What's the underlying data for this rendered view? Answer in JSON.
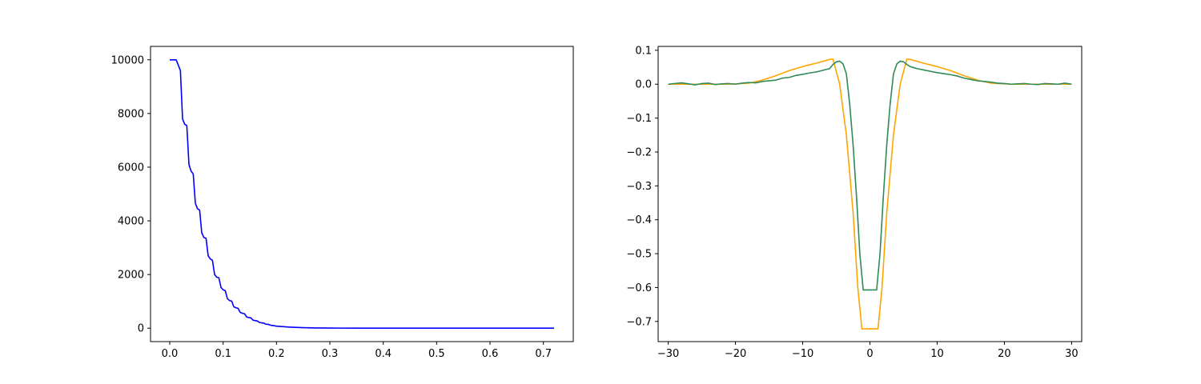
{
  "chart_data": [
    {
      "type": "line",
      "title": "",
      "xlabel": "",
      "ylabel": "",
      "xlim": [
        -0.036,
        0.756
      ],
      "ylim": [
        -500,
        10500
      ],
      "xticks": [
        0.0,
        0.1,
        0.2,
        0.3,
        0.4,
        0.5,
        0.6,
        0.7
      ],
      "xtick_labels": [
        "0.0",
        "0.1",
        "0.2",
        "0.3",
        "0.4",
        "0.5",
        "0.6",
        "0.7"
      ],
      "yticks": [
        0,
        2000,
        4000,
        6000,
        8000,
        10000
      ],
      "ytick_labels": [
        "0",
        "2000",
        "4000",
        "6000",
        "8000",
        "10000"
      ],
      "grid": false,
      "series": [
        {
          "color": "#0000ff",
          "x": [
            0.0,
            0.012,
            0.016,
            0.02,
            0.024,
            0.028,
            0.032,
            0.036,
            0.04,
            0.044,
            0.048,
            0.052,
            0.056,
            0.06,
            0.064,
            0.068,
            0.072,
            0.076,
            0.08,
            0.084,
            0.088,
            0.092,
            0.096,
            0.1,
            0.104,
            0.108,
            0.112,
            0.116,
            0.12,
            0.124,
            0.128,
            0.132,
            0.136,
            0.14,
            0.144,
            0.148,
            0.152,
            0.156,
            0.16,
            0.164,
            0.168,
            0.172,
            0.176,
            0.18,
            0.185,
            0.19,
            0.195,
            0.2,
            0.205,
            0.21,
            0.215,
            0.22,
            0.225,
            0.23,
            0.24,
            0.25,
            0.26,
            0.27,
            0.28,
            0.3,
            0.32,
            0.35,
            0.4,
            0.45,
            0.5,
            0.6,
            0.72
          ],
          "y": [
            10000,
            10000,
            9800,
            9600,
            7800,
            7600,
            7550,
            6100,
            5850,
            5750,
            4650,
            4450,
            4400,
            3550,
            3380,
            3350,
            2700,
            2580,
            2530,
            2000,
            1900,
            1880,
            1520,
            1430,
            1400,
            1100,
            1030,
            1010,
            800,
            760,
            740,
            590,
            555,
            540,
            420,
            395,
            385,
            300,
            280,
            270,
            215,
            200,
            190,
            150,
            140,
            105,
            95,
            75,
            68,
            60,
            52,
            45,
            40,
            35,
            27,
            20,
            15,
            10,
            8,
            5,
            3,
            2,
            1,
            0,
            0,
            0,
            0
          ]
        }
      ]
    },
    {
      "type": "line",
      "title": "",
      "xlabel": "",
      "ylabel": "",
      "xlim": [
        -31.5,
        31.5
      ],
      "ylim": [
        -0.7595,
        0.1115
      ],
      "xticks": [
        -30,
        -20,
        -10,
        0,
        10,
        20,
        30
      ],
      "xtick_labels": [
        "−30",
        "−20",
        "−10",
        "0",
        "10",
        "20",
        "30"
      ],
      "yticks": [
        -0.7,
        -0.6,
        -0.5,
        -0.4,
        -0.3,
        -0.2,
        -0.1,
        0.0,
        0.1
      ],
      "ytick_labels": [
        "−0.7",
        "−0.6",
        "−0.5",
        "−0.4",
        "−0.3",
        "−0.2",
        "−0.1",
        "0.0",
        "0.1"
      ],
      "grid": false,
      "series": [
        {
          "color": "#ffa500",
          "x": [
            -30,
            -27,
            -24,
            -21,
            -18,
            -16,
            -14,
            -12,
            -10,
            -8,
            -6,
            -5.5,
            -4.5,
            -3.5,
            -2.5,
            -1.8,
            -1.2,
            1.2,
            1.8,
            2.5,
            3.5,
            4.5,
            5.5,
            6,
            8,
            10,
            12,
            14,
            16,
            18,
            21,
            24,
            27,
            30
          ],
          "y": [
            0.0,
            0.0,
            0.0,
            0.0,
            0.003,
            0.012,
            0.025,
            0.04,
            0.052,
            0.062,
            0.073,
            0.074,
            0.0,
            -0.15,
            -0.38,
            -0.6,
            -0.722,
            -0.722,
            -0.6,
            -0.38,
            -0.15,
            0.0,
            0.074,
            0.073,
            0.062,
            0.052,
            0.04,
            0.025,
            0.012,
            0.003,
            0.0,
            0.0,
            0.0,
            0.0
          ]
        },
        {
          "color": "#2e8b57",
          "x": [
            -30,
            -29,
            -28,
            -27,
            -26,
            -25,
            -24,
            -23,
            -22,
            -21,
            -20,
            -19,
            -18,
            -17,
            -16,
            -15,
            -14,
            -13,
            -12,
            -11,
            -10,
            -9,
            -8,
            -7,
            -6,
            -5.5,
            -5,
            -4.5,
            -4,
            -3.5,
            -3,
            -2.5,
            -2,
            -1.5,
            -1,
            1,
            1.5,
            2,
            2.5,
            3,
            3.5,
            4,
            4.5,
            5,
            5.5,
            6,
            7,
            8,
            9,
            10,
            11,
            12,
            13,
            14,
            15,
            16,
            17,
            18,
            19,
            20,
            21,
            22,
            23,
            24,
            25,
            26,
            27,
            28,
            29,
            30
          ],
          "y": [
            0.0,
            0.002,
            0.004,
            0.001,
            -0.002,
            0.002,
            0.003,
            -0.001,
            0.001,
            0.002,
            0.0,
            0.003,
            0.005,
            0.004,
            0.008,
            0.01,
            0.012,
            0.018,
            0.02,
            0.026,
            0.029,
            0.033,
            0.036,
            0.041,
            0.046,
            0.058,
            0.066,
            0.068,
            0.06,
            0.03,
            -0.06,
            -0.18,
            -0.33,
            -0.5,
            -0.607,
            -0.607,
            -0.5,
            -0.33,
            -0.18,
            -0.06,
            0.03,
            0.06,
            0.068,
            0.066,
            0.058,
            0.052,
            0.046,
            0.042,
            0.038,
            0.034,
            0.031,
            0.028,
            0.024,
            0.018,
            0.014,
            0.01,
            0.008,
            0.006,
            0.003,
            0.002,
            0.0,
            0.001,
            0.002,
            0.0,
            -0.001,
            0.002,
            0.001,
            0.0,
            0.003,
            0.0
          ]
        }
      ]
    }
  ]
}
